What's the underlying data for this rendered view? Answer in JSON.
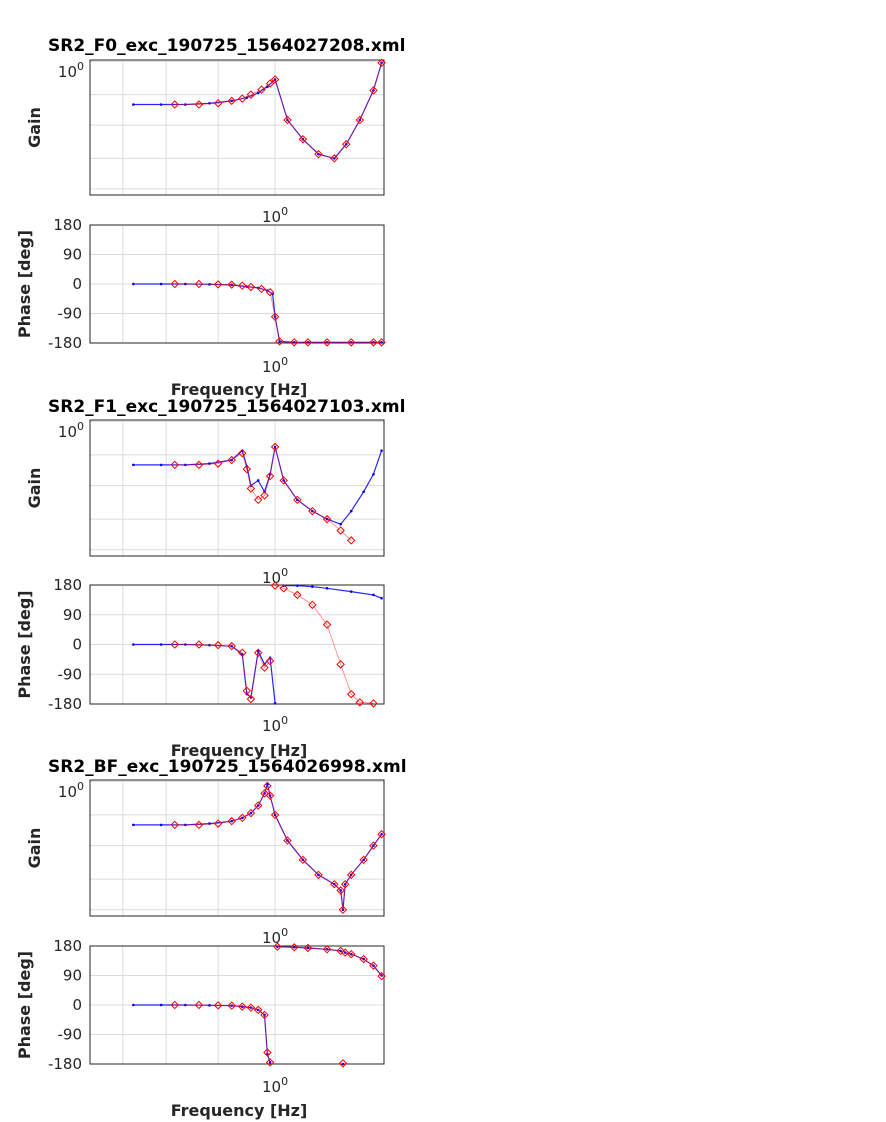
{
  "chart_data": [
    {
      "type": "bode",
      "title": "SR2_F0_exc_190725_1564027208.xml",
      "gain": {
        "ylabel": "Gain",
        "ytick_label": "10^0",
        "xtick_label": "10^0",
        "yscale": "log",
        "series": [
          {
            "color": "#0000ff",
            "marker": "dot",
            "x": [
              0.05,
              0.09,
              0.15,
              0.25,
              0.4,
              0.55,
              0.7,
              0.85,
              1.0,
              1.3,
              1.8,
              2.5,
              3.5,
              4.5,
              6.0,
              8.0,
              9.5
            ],
            "y": [
              0.21,
              0.21,
              0.21,
              0.22,
              0.24,
              0.27,
              0.32,
              0.4,
              0.52,
              0.12,
              0.06,
              0.035,
              0.03,
              0.05,
              0.12,
              0.35,
              0.95
            ]
          },
          {
            "color": "#ff0000",
            "marker": "diamond",
            "x": [
              0.12,
              0.2,
              0.3,
              0.4,
              0.5,
              0.6,
              0.75,
              0.9,
              1.0,
              1.3,
              1.8,
              2.5,
              3.5,
              4.5,
              6.0,
              8.0,
              9.5
            ],
            "y": [
              0.21,
              0.21,
              0.22,
              0.24,
              0.26,
              0.3,
              0.36,
              0.45,
              0.52,
              0.12,
              0.06,
              0.035,
              0.03,
              0.05,
              0.12,
              0.35,
              0.95
            ]
          }
        ]
      },
      "phase": {
        "ylabel": "Phase [deg]",
        "yticks": [
          180,
          90,
          0,
          -90,
          -180
        ],
        "ylim": [
          -180,
          180
        ],
        "xtick_label": "10^0",
        "xlabel": "Frequency [Hz]",
        "series": [
          {
            "color": "#0000ff",
            "marker": "dot",
            "x": [
              0.05,
              0.09,
              0.15,
              0.25,
              0.4,
              0.55,
              0.7,
              0.85,
              0.95,
              1.0,
              1.1,
              1.5,
              2.0,
              3.0,
              5.0,
              8.0,
              9.5
            ],
            "y": [
              0,
              0,
              0,
              -1,
              -3,
              -8,
              -12,
              -20,
              -30,
              -100,
              -175,
              -178,
              -178,
              -178,
              -178,
              -178,
              -178
            ]
          },
          {
            "color": "#ff0000",
            "marker": "diamond",
            "x": [
              0.12,
              0.2,
              0.3,
              0.4,
              0.5,
              0.6,
              0.75,
              0.9,
              1.0,
              1.1,
              1.5,
              2.0,
              3.0,
              5.0,
              8.0,
              9.5
            ],
            "y": [
              0,
              0,
              -1,
              -2,
              -5,
              -9,
              -15,
              -25,
              -100,
              -175,
              -178,
              -178,
              -178,
              -178,
              -178,
              -178
            ]
          }
        ]
      },
      "xscale": "log",
      "xlim": [
        0.02,
        10
      ]
    },
    {
      "type": "bode",
      "title": "SR2_F1_exc_190725_1564027103.xml",
      "gain": {
        "ylabel": "Gain",
        "ytick_label": "10^0",
        "xtick_label": "10^0",
        "yscale": "log",
        "series": [
          {
            "color": "#0000ff",
            "marker": "dot",
            "x": [
              0.05,
              0.09,
              0.15,
              0.25,
              0.4,
              0.5,
              0.55,
              0.6,
              0.7,
              0.8,
              0.9,
              1.0,
              1.2,
              1.6,
              2.2,
              3.0,
              4.0,
              5.0,
              6.5,
              8.0,
              9.5
            ],
            "y": [
              0.21,
              0.21,
              0.21,
              0.22,
              0.25,
              0.35,
              0.2,
              0.1,
              0.12,
              0.08,
              0.15,
              0.4,
              0.12,
              0.06,
              0.04,
              0.03,
              0.025,
              0.04,
              0.08,
              0.15,
              0.35
            ]
          },
          {
            "color": "#ff0000",
            "marker": "diamond",
            "x": [
              0.12,
              0.2,
              0.3,
              0.4,
              0.5,
              0.55,
              0.6,
              0.7,
              0.8,
              0.9,
              1.0,
              1.2,
              1.6,
              2.2,
              3.0,
              4.0,
              5.0
            ],
            "y": [
              0.21,
              0.21,
              0.22,
              0.25,
              0.32,
              0.18,
              0.09,
              0.06,
              0.07,
              0.14,
              0.4,
              0.12,
              0.06,
              0.04,
              0.03,
              0.02,
              0.014
            ]
          }
        ]
      },
      "phase": {
        "ylabel": "Phase [deg]",
        "yticks": [
          180,
          90,
          0,
          -90,
          -180
        ],
        "ylim": [
          -180,
          180
        ],
        "xtick_label": "10^0",
        "xlabel": "Frequency [Hz]",
        "series": [
          {
            "color": "#0000ff",
            "marker": "dot",
            "x": [
              0.05,
              0.09,
              0.15,
              0.25,
              0.4,
              0.5,
              0.55,
              0.6,
              0.7,
              0.8,
              0.9,
              1.0,
              1.2,
              1.6,
              2.2,
              3.0,
              5.0,
              8.0,
              9.5
            ],
            "y": [
              0,
              0,
              0,
              -2,
              -5,
              -30,
              -150,
              -160,
              -20,
              -60,
              -40,
              -178,
              178,
              178,
              175,
              170,
              160,
              150,
              140
            ]
          },
          {
            "color": "#ff0000",
            "marker": "diamond",
            "x": [
              0.12,
              0.2,
              0.3,
              0.4,
              0.5,
              0.55,
              0.6,
              0.7,
              0.8,
              0.9,
              1.0,
              1.2,
              1.6,
              2.2,
              3.0,
              4.0,
              5.0,
              6.0,
              8.0
            ],
            "y": [
              0,
              0,
              -2,
              -5,
              -25,
              -140,
              -165,
              -25,
              -70,
              -50,
              178,
              170,
              150,
              120,
              60,
              -60,
              -150,
              -175,
              -178
            ]
          }
        ]
      },
      "xscale": "log",
      "xlim": [
        0.02,
        10
      ]
    },
    {
      "type": "bode",
      "title": "SR2_BF_exc_190725_1564026998.xml",
      "gain": {
        "ylabel": "Gain",
        "ytick_label": "10^0",
        "xtick_label": "10^0",
        "yscale": "log",
        "series": [
          {
            "color": "#0000ff",
            "marker": "dot",
            "x": [
              0.05,
              0.09,
              0.15,
              0.25,
              0.4,
              0.5,
              0.6,
              0.7,
              0.8,
              0.85,
              0.9,
              1.0,
              1.3,
              1.8,
              2.5,
              3.5,
              4.0,
              4.2,
              4.4,
              5.0,
              6.5,
              8.0,
              9.5
            ],
            "y": [
              0.21,
              0.21,
              0.21,
              0.22,
              0.24,
              0.27,
              0.32,
              0.42,
              0.65,
              0.9,
              0.6,
              0.3,
              0.12,
              0.06,
              0.035,
              0.025,
              0.02,
              0.01,
              0.025,
              0.035,
              0.06,
              0.1,
              0.15
            ]
          },
          {
            "color": "#ff0000",
            "marker": "diamond",
            "x": [
              0.12,
              0.2,
              0.3,
              0.4,
              0.5,
              0.6,
              0.7,
              0.8,
              0.85,
              0.9,
              1.0,
              1.3,
              1.8,
              2.5,
              3.5,
              4.0,
              4.2,
              4.4,
              5.0,
              6.5,
              8.0,
              9.5
            ],
            "y": [
              0.21,
              0.21,
              0.22,
              0.24,
              0.27,
              0.32,
              0.42,
              0.65,
              0.85,
              0.6,
              0.3,
              0.12,
              0.06,
              0.035,
              0.025,
              0.02,
              0.01,
              0.025,
              0.035,
              0.06,
              0.1,
              0.15
            ]
          }
        ]
      },
      "phase": {
        "ylabel": "Phase [deg]",
        "yticks": [
          180,
          90,
          0,
          -90,
          -180
        ],
        "ylim": [
          -180,
          180
        ],
        "xtick_label": "10^0",
        "xlabel": "Frequency [Hz]",
        "series": [
          {
            "color": "#0000ff",
            "marker": "dot",
            "x": [
              0.05,
              0.09,
              0.15,
              0.25,
              0.4,
              0.5,
              0.6,
              0.7,
              0.8,
              0.85,
              0.9,
              1.05,
              1.5,
              2.0,
              3.0,
              4.0,
              4.2,
              4.4,
              5.0,
              6.5,
              8.0,
              9.5
            ],
            "y": [
              0,
              0,
              0,
              -1,
              -2,
              -5,
              -8,
              -15,
              -30,
              -150,
              -175,
              178,
              176,
              174,
              170,
              165,
              -180,
              160,
              155,
              140,
              120,
              90
            ]
          },
          {
            "color": "#ff0000",
            "marker": "diamond",
            "x": [
              0.12,
              0.2,
              0.3,
              0.4,
              0.5,
              0.6,
              0.7,
              0.8,
              0.85,
              0.9,
              1.05,
              1.5,
              2.0,
              3.0,
              4.0,
              4.2,
              4.4,
              5.0,
              6.5,
              8.0,
              9.5
            ],
            "y": [
              0,
              0,
              -1,
              -2,
              -5,
              -8,
              -15,
              -30,
              -145,
              -175,
              178,
              176,
              174,
              170,
              165,
              -178,
              160,
              155,
              140,
              120,
              88
            ]
          }
        ]
      },
      "xscale": "log",
      "xlim": [
        0.02,
        10
      ]
    }
  ]
}
